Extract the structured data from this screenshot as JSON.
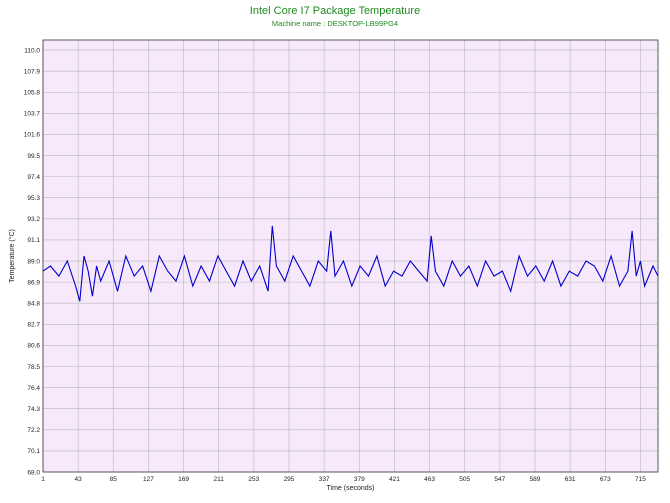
{
  "chart_data": {
    "type": "line",
    "title": "Intel Core I7 Package Temperature",
    "subtitle": "Machine name : DESKTOP-LB99PG4",
    "xlabel": "Time (seconds)",
    "ylabel": "Temperature (°C)",
    "xlim": [
      1,
      736
    ],
    "ylim": [
      68.0,
      111.0
    ],
    "x_ticks": [
      "1",
      "43",
      "85",
      "127",
      "169",
      "211",
      "253",
      "295",
      "337",
      "379",
      "421",
      "463",
      "505",
      "547",
      "589",
      "631",
      "673",
      "715"
    ],
    "y_ticks": [
      "68.0",
      "70.1",
      "72.2",
      "74.3",
      "76.4",
      "78.5",
      "80.6",
      "82.7",
      "84.8",
      "86.9",
      "89.0",
      "91.1",
      "93.2",
      "95.3",
      "97.4",
      "99.5",
      "101.6",
      "103.7",
      "105.8",
      "107.9",
      "110.0"
    ],
    "grid": true,
    "series": [
      {
        "color": "#0000cc",
        "x": [
          1,
          10,
          20,
          30,
          40,
          45,
          50,
          55,
          60,
          65,
          70,
          80,
          90,
          100,
          110,
          120,
          130,
          140,
          150,
          160,
          170,
          180,
          190,
          200,
          210,
          220,
          230,
          240,
          250,
          260,
          270,
          275,
          280,
          290,
          300,
          310,
          320,
          330,
          340,
          345,
          350,
          360,
          370,
          380,
          390,
          400,
          410,
          420,
          430,
          440,
          450,
          460,
          465,
          470,
          480,
          490,
          500,
          510,
          520,
          530,
          540,
          550,
          560,
          570,
          580,
          590,
          600,
          610,
          620,
          630,
          640,
          650,
          660,
          670,
          680,
          690,
          700,
          705,
          710,
          715,
          720,
          730,
          736
        ],
        "y": [
          88.0,
          88.5,
          87.5,
          89.0,
          86.5,
          85.0,
          89.5,
          88.0,
          85.5,
          88.5,
          87.0,
          89.0,
          86.0,
          89.5,
          87.5,
          88.5,
          86.0,
          89.5,
          88.0,
          87.0,
          89.5,
          86.5,
          88.5,
          87.0,
          89.5,
          88.0,
          86.5,
          89.0,
          87.0,
          88.5,
          86.0,
          92.5,
          88.5,
          87.0,
          89.5,
          88.0,
          86.5,
          89.0,
          88.0,
          92.0,
          87.5,
          89.0,
          86.5,
          88.5,
          87.5,
          89.5,
          86.5,
          88.0,
          87.5,
          89.0,
          88.0,
          87.0,
          91.5,
          88.0,
          86.5,
          89.0,
          87.5,
          88.5,
          86.5,
          89.0,
          87.5,
          88.0,
          86.0,
          89.5,
          87.5,
          88.5,
          87.0,
          89.0,
          86.5,
          88.0,
          87.5,
          89.0,
          88.5,
          87.0,
          89.5,
          86.5,
          88.0,
          92.0,
          87.5,
          89.0,
          86.5,
          88.5,
          87.5
        ]
      }
    ]
  }
}
